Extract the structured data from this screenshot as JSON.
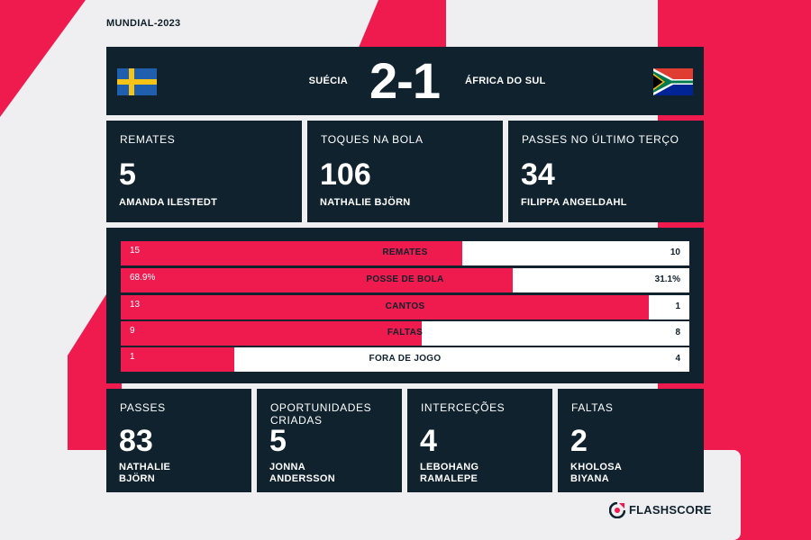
{
  "header": {
    "tournament": "MUNDIAL-2023"
  },
  "match": {
    "home_team": "SUÉCIA",
    "away_team": "ÁFRICA DO SUL",
    "score": "2-1",
    "home_flag": "sweden-flag",
    "away_flag": "south-africa-flag"
  },
  "top_stats": [
    {
      "title": "REMATES",
      "value": "5",
      "player": "AMANDA ILESTEDT"
    },
    {
      "title": "TOQUES NA BOLA",
      "value": "106",
      "player": "NATHALIE BJÖRN"
    },
    {
      "title": "PASSES NO ÚLTIMO TERÇO",
      "value": "34",
      "player": "FILIPPA ANGELDAHL"
    }
  ],
  "comparison": [
    {
      "label": "REMATES",
      "home": "15",
      "away": "10",
      "home_share": 0.6
    },
    {
      "label": "POSSE DE BOLA",
      "home": "68.9%",
      "away": "31.1%",
      "home_share": 0.689
    },
    {
      "label": "CANTOS",
      "home": "13",
      "away": "1",
      "home_share": 0.929
    },
    {
      "label": "FALTAS",
      "home": "9",
      "away": "8",
      "home_share": 0.529
    },
    {
      "label": "FORA DE JOGO",
      "home": "1",
      "away": "4",
      "home_share": 0.2
    }
  ],
  "bottom_stats": [
    {
      "title_1": "PASSES",
      "title_2": "",
      "value": "83",
      "player_1": "NATHALIE",
      "player_2": "BJÖRN"
    },
    {
      "title_1": "OPORTUNIDADES",
      "title_2": "CRIADAS",
      "value": "5",
      "player_1": "JONNA",
      "player_2": "ANDERSSON"
    },
    {
      "title_1": "INTERCEÇÕES",
      "title_2": "",
      "value": "4",
      "player_1": "LEBOHANG",
      "player_2": "RAMALEPE"
    },
    {
      "title_1": "FALTAS",
      "title_2": "",
      "value": "2",
      "player_1": "KHOLOSA",
      "player_2": "BIYANA"
    }
  ],
  "brand": {
    "name": "FLASHSCORE",
    "icon": "flashscore-logo-icon"
  },
  "colors": {
    "accent": "#ef1a4e",
    "panel": "#0f222d",
    "background": "#efeff1"
  }
}
